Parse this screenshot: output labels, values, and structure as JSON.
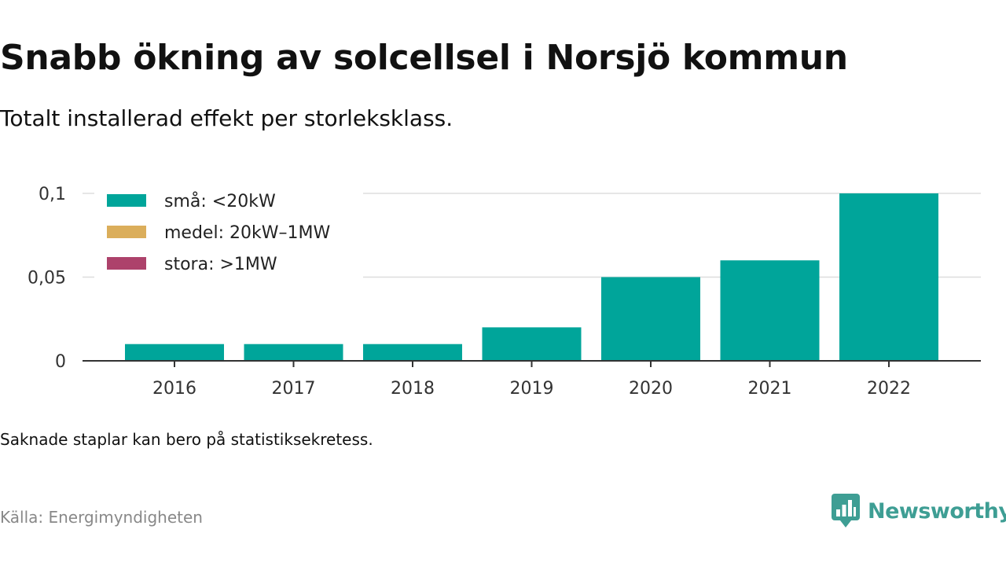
{
  "title": "Snabb ökning av solcellsel i Norsjö kommun",
  "subtitle": "Totalt installerad effekt per storleksklass.",
  "note": "Saknade staplar kan bero på statistiksekretess.",
  "source": "Källa: Energimyndigheten",
  "brand": {
    "name": "Newsworthy",
    "icon": "newsworthy-logo-icon",
    "color": "#3e9e94"
  },
  "chart_data": {
    "type": "bar",
    "stacked": true,
    "categories": [
      "2016",
      "2017",
      "2018",
      "2019",
      "2020",
      "2021",
      "2022"
    ],
    "series": [
      {
        "name": "små: <20kW",
        "color": "#00a59a",
        "values": [
          0.01,
          0.01,
          0.01,
          0.02,
          0.05,
          0.06,
          0.1
        ]
      },
      {
        "name": "medel: 20kW–1MW",
        "color": "#dbae5b",
        "values": [
          0,
          0,
          0,
          0,
          0,
          0,
          0
        ]
      },
      {
        "name": "stora: >1MW",
        "color": "#ad426b",
        "values": [
          0,
          0,
          0,
          0,
          0,
          0,
          0
        ]
      }
    ],
    "yticks": [
      0,
      0.05,
      0.1
    ],
    "ytick_labels": [
      "0",
      "0,05",
      "0,1"
    ],
    "ylim": [
      0,
      0.1
    ],
    "grid": true,
    "legend": "top-left"
  }
}
